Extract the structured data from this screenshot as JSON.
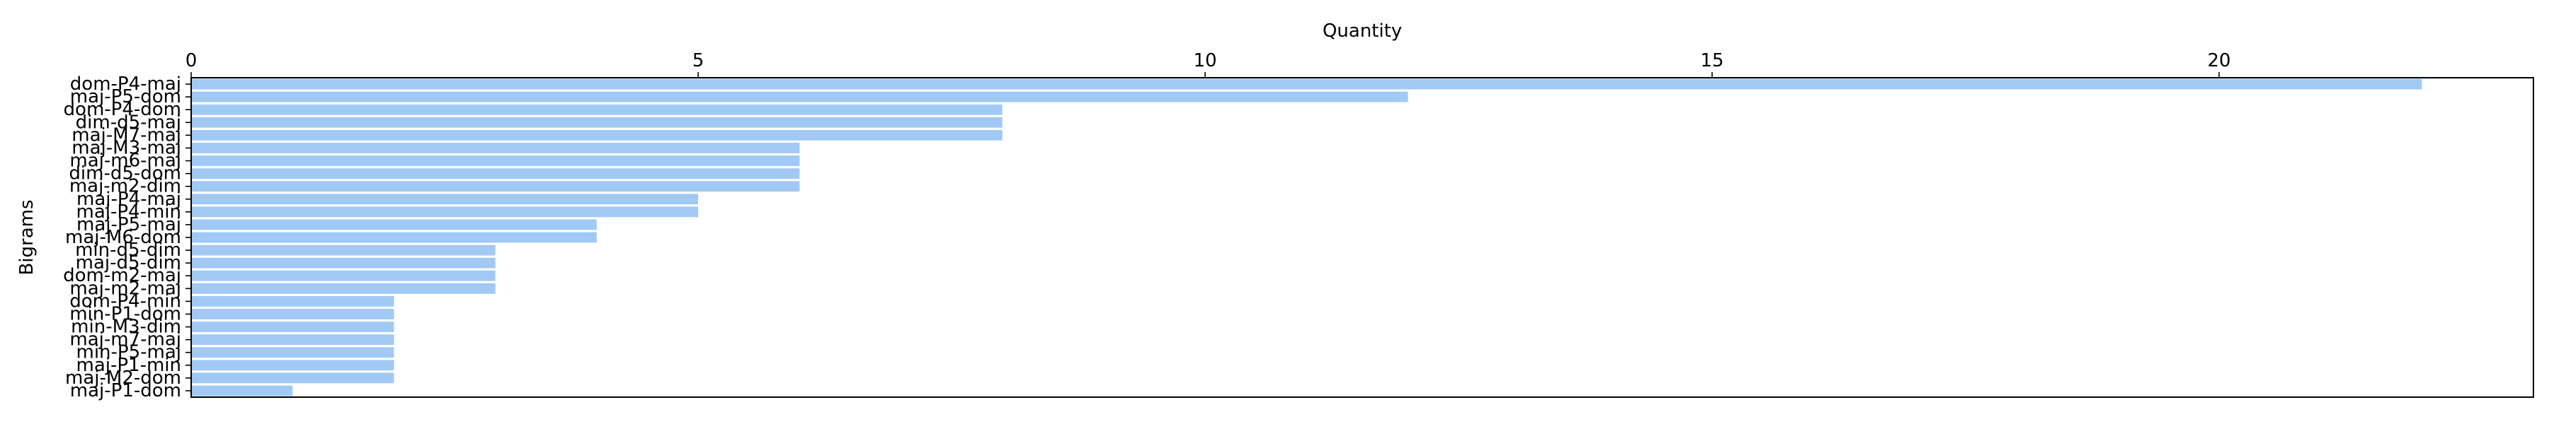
{
  "chart_data": {
    "type": "bar",
    "orientation": "horizontal",
    "xlabel": "Quantity",
    "ylabel": "Bigrams",
    "xlim": [
      0,
      23.1
    ],
    "xticks": [
      0,
      5,
      10,
      15,
      20
    ],
    "x_axis_position": "top",
    "grid": false,
    "bar_color": "#a1c9f4",
    "categories": [
      "dom-P4-maj",
      "maj-P5-dom",
      "dom-P4-dom",
      "dim-d5-maj",
      "maj-M7-maj",
      "maj-M3-maj",
      "maj-m6-maj",
      "dim-d5-dom",
      "maj-m2-dim",
      "maj-P4-maj",
      "maj-P4-min",
      "maj-P5-maj",
      "maj-M6-dom",
      "min-d5-dim",
      "maj-d5-dim",
      "dom-m2-maj",
      "maj-m2-maj",
      "dom-P4-min",
      "min-P1-dom",
      "min-M3-dim",
      "maj-m7-maj",
      "min-P5-maj",
      "maj-P1-min",
      "maj-M2-dom",
      "maj-P1-dom"
    ],
    "values": [
      22,
      12,
      8,
      8,
      8,
      6,
      6,
      6,
      6,
      5,
      5,
      4,
      4,
      3,
      3,
      3,
      3,
      2,
      2,
      2,
      2,
      2,
      2,
      2,
      1
    ]
  }
}
